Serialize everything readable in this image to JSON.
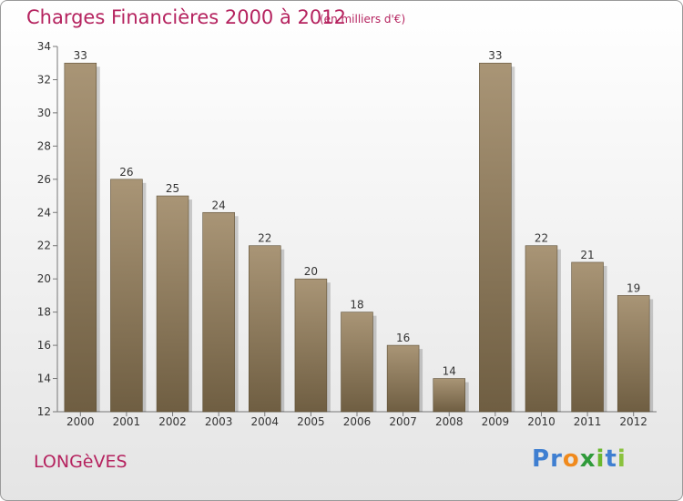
{
  "header": {
    "title": "Charges Financières 2000 à 2012",
    "subtitle": "(en milliers d'€)"
  },
  "footer": {
    "commune": "LONGèVES",
    "logo": "Proxiti"
  },
  "colors": {
    "title": "#b5235f",
    "bar_top": "#a99576",
    "bar_bottom": "#6f5e42",
    "logo_letters": [
      "#3f7fd1",
      "#3f7fd1",
      "#f08a1d",
      "#2f9a3a",
      "#6ab82e",
      "#3f7fd1",
      "#8ac23d"
    ]
  },
  "chart_data": {
    "type": "bar",
    "categories": [
      "2000",
      "2001",
      "2002",
      "2003",
      "2004",
      "2005",
      "2006",
      "2007",
      "2008",
      "2009",
      "2010",
      "2011",
      "2012"
    ],
    "values": [
      33,
      26,
      25,
      24,
      22,
      20,
      18,
      16,
      14,
      33,
      22,
      21,
      19
    ],
    "title": "Charges Financières 2000 à 2012",
    "subtitle": "(en milliers d'€)",
    "ylim": [
      12,
      34
    ],
    "yticks": [
      12,
      14,
      16,
      18,
      20,
      22,
      24,
      26,
      28,
      30,
      32,
      34
    ],
    "grid": false,
    "data_labels": true
  }
}
